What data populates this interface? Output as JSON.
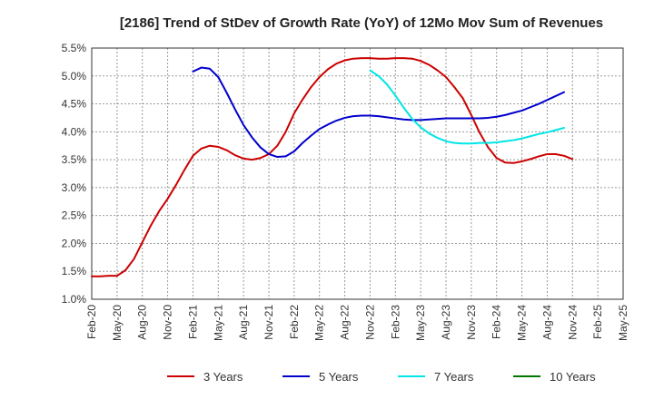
{
  "chart_data": {
    "type": "line",
    "title": "[2186]  Trend of StDev of Growth Rate (YoY) of 12Mo Mov Sum of Revenues",
    "xlabel": "",
    "ylabel": "",
    "ylim": [
      1.0,
      5.5
    ],
    "y_ticks": [
      "1.0%",
      "1.5%",
      "2.0%",
      "2.5%",
      "3.0%",
      "3.5%",
      "4.0%",
      "4.5%",
      "5.0%",
      "5.5%"
    ],
    "x_ticks": [
      "Feb-20",
      "May-20",
      "Aug-20",
      "Nov-20",
      "Feb-21",
      "May-21",
      "Aug-21",
      "Nov-21",
      "Feb-22",
      "May-22",
      "Aug-22",
      "Nov-22",
      "Feb-23",
      "May-23",
      "Aug-23",
      "Nov-23",
      "Feb-24",
      "May-24",
      "Aug-24",
      "Nov-24",
      "Feb-25",
      "May-25"
    ],
    "grid": true,
    "legend_position": "bottom",
    "series": [
      {
        "name": "3 Years",
        "color": "#cc0000",
        "points": [
          [
            0,
            1.41
          ],
          [
            1,
            1.41
          ],
          [
            2,
            1.42
          ],
          [
            3,
            1.42
          ],
          [
            4,
            1.52
          ],
          [
            5,
            1.72
          ],
          [
            6,
            2.02
          ],
          [
            7,
            2.32
          ],
          [
            8,
            2.58
          ],
          [
            9,
            2.8
          ],
          [
            10,
            3.05
          ],
          [
            11,
            3.32
          ],
          [
            12,
            3.57
          ],
          [
            13,
            3.7
          ],
          [
            14,
            3.75
          ],
          [
            15,
            3.73
          ],
          [
            16,
            3.67
          ],
          [
            17,
            3.58
          ],
          [
            18,
            3.52
          ],
          [
            19,
            3.5
          ],
          [
            20,
            3.53
          ],
          [
            21,
            3.6
          ],
          [
            22,
            3.75
          ],
          [
            23,
            4.0
          ],
          [
            24,
            4.33
          ],
          [
            25,
            4.58
          ],
          [
            26,
            4.8
          ],
          [
            27,
            4.98
          ],
          [
            28,
            5.12
          ],
          [
            29,
            5.22
          ],
          [
            30,
            5.28
          ],
          [
            31,
            5.31
          ],
          [
            32,
            5.32
          ],
          [
            33,
            5.32
          ],
          [
            34,
            5.31
          ],
          [
            35,
            5.31
          ],
          [
            36,
            5.32
          ],
          [
            37,
            5.32
          ],
          [
            38,
            5.31
          ],
          [
            39,
            5.27
          ],
          [
            40,
            5.2
          ],
          [
            41,
            5.1
          ],
          [
            42,
            4.98
          ],
          [
            43,
            4.8
          ],
          [
            44,
            4.6
          ],
          [
            45,
            4.3
          ],
          [
            46,
            3.98
          ],
          [
            47,
            3.72
          ],
          [
            48,
            3.53
          ],
          [
            49,
            3.45
          ],
          [
            50,
            3.44
          ],
          [
            51,
            3.47
          ],
          [
            52,
            3.51
          ],
          [
            53,
            3.56
          ],
          [
            54,
            3.6
          ],
          [
            55,
            3.6
          ],
          [
            56,
            3.57
          ],
          [
            57,
            3.51
          ]
        ]
      },
      {
        "name": "5 Years",
        "color": "#0000cc",
        "points": [
          [
            12,
            5.08
          ],
          [
            13,
            5.15
          ],
          [
            14,
            5.13
          ],
          [
            15,
            4.98
          ],
          [
            16,
            4.7
          ],
          [
            17,
            4.4
          ],
          [
            18,
            4.12
          ],
          [
            19,
            3.9
          ],
          [
            20,
            3.72
          ],
          [
            21,
            3.6
          ],
          [
            22,
            3.55
          ],
          [
            23,
            3.56
          ],
          [
            24,
            3.65
          ],
          [
            25,
            3.8
          ],
          [
            26,
            3.93
          ],
          [
            27,
            4.05
          ],
          [
            28,
            4.13
          ],
          [
            29,
            4.2
          ],
          [
            30,
            4.25
          ],
          [
            31,
            4.28
          ],
          [
            32,
            4.29
          ],
          [
            33,
            4.29
          ],
          [
            34,
            4.28
          ],
          [
            35,
            4.26
          ],
          [
            36,
            4.24
          ],
          [
            37,
            4.22
          ],
          [
            38,
            4.21
          ],
          [
            39,
            4.21
          ],
          [
            40,
            4.22
          ],
          [
            41,
            4.23
          ],
          [
            42,
            4.24
          ],
          [
            43,
            4.24
          ],
          [
            44,
            4.24
          ],
          [
            45,
            4.24
          ],
          [
            46,
            4.24
          ],
          [
            47,
            4.25
          ],
          [
            48,
            4.27
          ],
          [
            49,
            4.3
          ],
          [
            50,
            4.34
          ],
          [
            51,
            4.38
          ],
          [
            52,
            4.44
          ],
          [
            53,
            4.5
          ],
          [
            54,
            4.57
          ],
          [
            55,
            4.64
          ],
          [
            56,
            4.71
          ]
        ]
      },
      {
        "name": "7 Years",
        "color": "#00e5e5",
        "points": [
          [
            33,
            5.1
          ],
          [
            34,
            5.0
          ],
          [
            35,
            4.85
          ],
          [
            36,
            4.65
          ],
          [
            37,
            4.43
          ],
          [
            38,
            4.23
          ],
          [
            39,
            4.08
          ],
          [
            40,
            3.97
          ],
          [
            41,
            3.89
          ],
          [
            42,
            3.83
          ],
          [
            43,
            3.8
          ],
          [
            44,
            3.79
          ],
          [
            45,
            3.79
          ],
          [
            46,
            3.8
          ],
          [
            47,
            3.8
          ],
          [
            48,
            3.81
          ],
          [
            49,
            3.83
          ],
          [
            50,
            3.85
          ],
          [
            51,
            3.88
          ],
          [
            52,
            3.92
          ],
          [
            53,
            3.96
          ],
          [
            54,
            3.99
          ],
          [
            55,
            4.03
          ],
          [
            56,
            4.07
          ]
        ]
      },
      {
        "name": "10 Years",
        "color": "#007700",
        "points": []
      }
    ]
  }
}
